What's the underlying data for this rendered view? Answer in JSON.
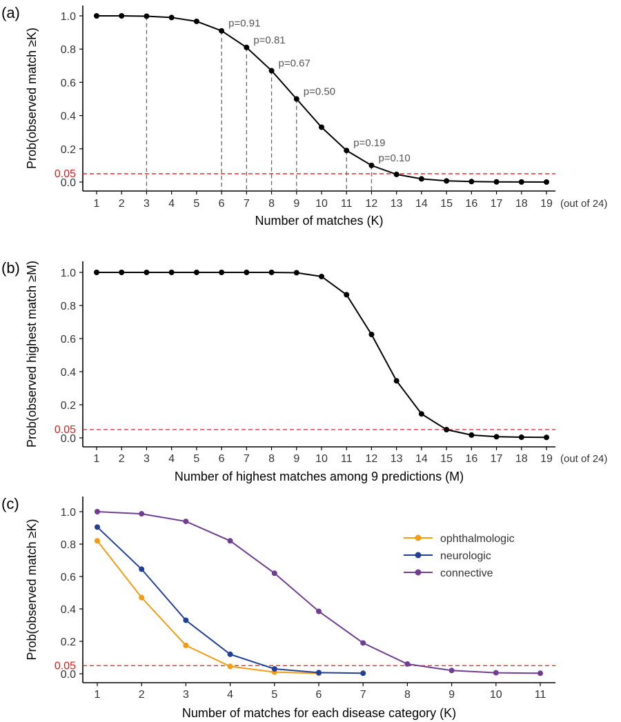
{
  "chart_data": [
    {
      "panel_label": "(a)",
      "type": "line",
      "xlabel": "Number of matches (K)",
      "ylabel": "Prob(observed match ≥K)",
      "x_suffix": "(out of 24)",
      "xlim": [
        1,
        19
      ],
      "ylim": [
        0,
        1
      ],
      "yticks": [
        "0.0",
        "0.2",
        "0.4",
        "0.6",
        "0.8",
        "1.0"
      ],
      "threshold": {
        "value": 0.05,
        "label": "0.05",
        "color": "#e31a1c"
      },
      "series": [
        {
          "color": "#000000",
          "x": [
            1,
            2,
            3,
            4,
            5,
            6,
            7,
            8,
            9,
            10,
            11,
            12,
            13,
            14,
            15,
            16,
            17,
            18,
            19
          ],
          "values": [
            1.0,
            1.0,
            0.998,
            0.99,
            0.967,
            0.91,
            0.81,
            0.67,
            0.5,
            0.33,
            0.19,
            0.1,
            0.046,
            0.019,
            0.007,
            0.003,
            0.001,
            0.0005,
            0.0002
          ]
        }
      ],
      "dropline_x": [
        3,
        6,
        7,
        8,
        9,
        11,
        12
      ],
      "annotations": [
        {
          "x": 6,
          "y": 0.91,
          "text": "p=0.91"
        },
        {
          "x": 7,
          "y": 0.81,
          "text": "p=0.81"
        },
        {
          "x": 8,
          "y": 0.67,
          "text": "p=0.67"
        },
        {
          "x": 9,
          "y": 0.5,
          "text": "p=0.50"
        },
        {
          "x": 11,
          "y": 0.19,
          "text": "p=0.19"
        },
        {
          "x": 12,
          "y": 0.1,
          "text": "p=0.10"
        }
      ],
      "grid": false
    },
    {
      "panel_label": "(b)",
      "type": "line",
      "xlabel": "Number of highest matches among 9 predictions (M)",
      "ylabel": "Prob(observed highest match ≥M)",
      "x_suffix": "(out of 24)",
      "xlim": [
        1,
        19
      ],
      "ylim": [
        0,
        1
      ],
      "yticks": [
        "0.0",
        "0.2",
        "0.4",
        "0.6",
        "0.8",
        "1.0"
      ],
      "threshold": {
        "value": 0.05,
        "label": "0.05",
        "color": "#e31a1c"
      },
      "series": [
        {
          "color": "#000000",
          "x": [
            1,
            2,
            3,
            4,
            5,
            6,
            7,
            8,
            9,
            10,
            11,
            12,
            13,
            14,
            15,
            16,
            17,
            18,
            19
          ],
          "values": [
            1.0,
            1.0,
            1.0,
            1.0,
            1.0,
            1.0,
            1.0,
            1.0,
            0.998,
            0.975,
            0.865,
            0.625,
            0.345,
            0.145,
            0.05,
            0.017,
            0.007,
            0.004,
            0.003
          ]
        }
      ],
      "grid": false
    },
    {
      "panel_label": "(c)",
      "type": "line",
      "xlabel": "Number of matches for each disease category (K)",
      "ylabel": "Prob(observed match ≥K)",
      "xlim": [
        1,
        11
      ],
      "ylim": [
        0,
        1
      ],
      "yticks": [
        "0.0",
        "0.2",
        "0.4",
        "0.6",
        "0.8",
        "1.0"
      ],
      "threshold": {
        "value": 0.05,
        "label": "0.05",
        "color": "#e31a1c"
      },
      "legend_position": "top-right",
      "series": [
        {
          "name": "ophthalmologic",
          "color": "#f39c12",
          "x": [
            1,
            2,
            3,
            4,
            5,
            6
          ],
          "values": [
            0.82,
            0.47,
            0.175,
            0.045,
            0.01,
            0.002
          ]
        },
        {
          "name": "neurologic",
          "color": "#1f3f99",
          "x": [
            1,
            2,
            3,
            4,
            5,
            6,
            7
          ],
          "values": [
            0.905,
            0.645,
            0.33,
            0.12,
            0.03,
            0.007,
            0.003
          ]
        },
        {
          "name": "connective",
          "color": "#6f3d91",
          "x": [
            1,
            2,
            3,
            4,
            5,
            6,
            7,
            8,
            9,
            10,
            11
          ],
          "values": [
            1.0,
            0.987,
            0.94,
            0.82,
            0.62,
            0.385,
            0.19,
            0.06,
            0.02,
            0.006,
            0.003
          ]
        }
      ],
      "grid": false
    }
  ]
}
